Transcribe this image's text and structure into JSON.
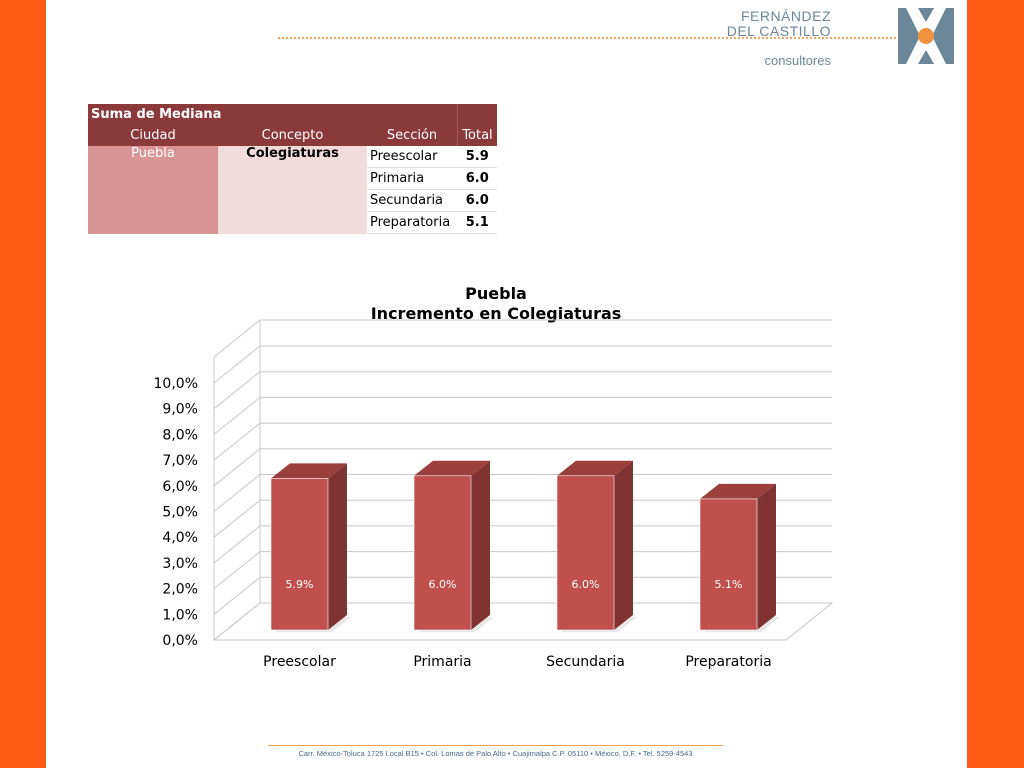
{
  "logo": {
    "line1": "FERNÁNDEZ",
    "line2": "DEL CASTILLO",
    "line3": "consultores",
    "colors": {
      "text": "#6b8799",
      "mark": "#6b8799",
      "dot": "#f0923e"
    }
  },
  "table": {
    "header_top": "Suma de Mediana",
    "headers": {
      "city": "Ciudad",
      "concept": "Concepto",
      "section": "Sección",
      "total": "Total"
    },
    "city": "Puebla",
    "concept": "Colegiaturas",
    "rows": [
      {
        "section": "Preescolar",
        "total": "5.9"
      },
      {
        "section": "Primaria",
        "total": "6.0"
      },
      {
        "section": "Secundaria",
        "total": "6.0"
      },
      {
        "section": "Preparatoria",
        "total": "5.1"
      }
    ]
  },
  "chart_data": {
    "type": "bar",
    "title_line1": "Puebla",
    "title_line2": "Incremento en Colegiaturas",
    "categories": [
      "Preescolar",
      "Primaria",
      "Secundaria",
      "Preparatoria"
    ],
    "values": [
      5.9,
      6.0,
      6.0,
      5.1
    ],
    "data_labels": [
      "5.9%",
      "6.0%",
      "6.0%",
      "5.1%"
    ],
    "ylim": [
      0,
      10
    ],
    "y_ticks": [
      "0,0%",
      "1,0%",
      "2,0%",
      "3,0%",
      "4,0%",
      "5,0%",
      "6,0%",
      "7,0%",
      "8,0%",
      "9,0%",
      "10,0%"
    ],
    "grid": true,
    "three_d": true,
    "colors": {
      "bar_front": "#c0504d",
      "bar_side": "#803432",
      "bar_top": "#9a3f3c",
      "grid": "#c8c8c8"
    }
  },
  "footer": {
    "text": "Carr. México-Toluca 1725 Local B15 • Col. Lomas de Palo Alto • Cuajimalpa C.P. 05110 • México, D.F. • Tel. 5259-4543"
  }
}
